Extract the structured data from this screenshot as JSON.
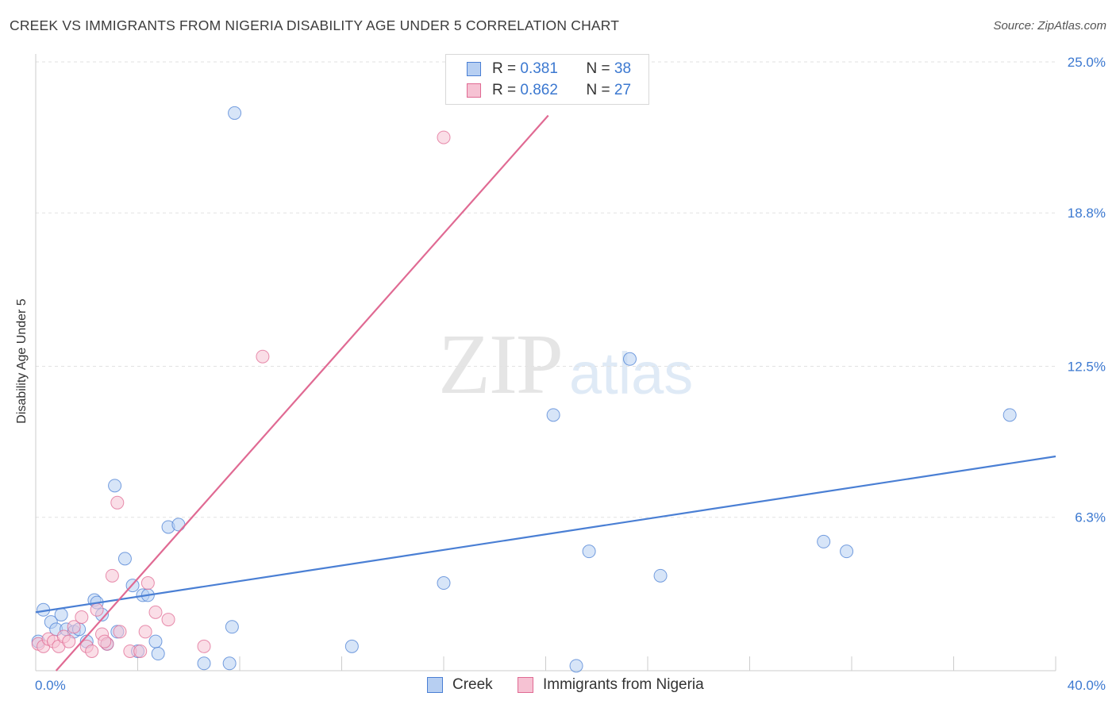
{
  "title": "CREEK VS IMMIGRANTS FROM NIGERIA DISABILITY AGE UNDER 5 CORRELATION CHART",
  "source": "Source: ZipAtlas.com",
  "watermark": {
    "zip": "ZIP",
    "atlas": "atlas"
  },
  "legend": {
    "rows": [
      {
        "r_label": "R =",
        "r_value": "0.381",
        "n_label": "N =",
        "n_value": "38"
      },
      {
        "r_label": "R =",
        "r_value": "0.862",
        "n_label": "N =",
        "n_value": "27"
      }
    ]
  },
  "chart_data": {
    "type": "scatter",
    "title": "CREEK VS IMMIGRANTS FROM NIGERIA DISABILITY AGE UNDER 5 CORRELATION CHART",
    "xlabel": "",
    "ylabel": "Disability Age Under 5",
    "xlim": [
      0,
      40
    ],
    "ylim": [
      0,
      25
    ],
    "x_tick_labels": [
      "0.0%",
      "40.0%"
    ],
    "y_ticks": [
      6.3,
      12.5,
      18.8,
      25.0
    ],
    "y_tick_labels": [
      "6.3%",
      "12.5%",
      "18.8%",
      "25.0%"
    ],
    "series": [
      {
        "name": "Creek",
        "color": "#4a7fd4",
        "fill": "#b7cff2",
        "trend": {
          "x": [
            0,
            40
          ],
          "y": [
            2.4,
            8.8
          ]
        },
        "points": [
          [
            0.1,
            1.2
          ],
          [
            0.3,
            2.5
          ],
          [
            0.6,
            2.0
          ],
          [
            0.8,
            1.7
          ],
          [
            1.0,
            2.3
          ],
          [
            1.2,
            1.7
          ],
          [
            1.5,
            1.6
          ],
          [
            1.7,
            1.7
          ],
          [
            2.0,
            1.2
          ],
          [
            2.3,
            2.9
          ],
          [
            2.4,
            2.8
          ],
          [
            2.6,
            2.3
          ],
          [
            2.8,
            1.1
          ],
          [
            3.1,
            7.6
          ],
          [
            3.2,
            1.6
          ],
          [
            3.5,
            4.6
          ],
          [
            3.8,
            3.5
          ],
          [
            4.0,
            0.8
          ],
          [
            4.2,
            3.1
          ],
          [
            4.4,
            3.1
          ],
          [
            4.7,
            1.2
          ],
          [
            4.8,
            0.7
          ],
          [
            5.2,
            5.9
          ],
          [
            5.6,
            6.0
          ],
          [
            6.6,
            0.3
          ],
          [
            7.6,
            0.3
          ],
          [
            7.7,
            1.8
          ],
          [
            7.8,
            22.9
          ],
          [
            12.4,
            1.0
          ],
          [
            16.0,
            3.6
          ],
          [
            20.3,
            10.5
          ],
          [
            21.2,
            0.2
          ],
          [
            21.7,
            4.9
          ],
          [
            23.3,
            12.8
          ],
          [
            24.5,
            3.9
          ],
          [
            30.9,
            5.3
          ],
          [
            31.8,
            4.9
          ],
          [
            38.2,
            10.5
          ]
        ]
      },
      {
        "name": "Immigrants from Nigeria",
        "color": "#e06a93",
        "fill": "#f6c2d3",
        "trend": {
          "x": [
            0.8,
            20.1
          ],
          "y": [
            0,
            22.8
          ]
        },
        "points": [
          [
            0.1,
            1.1
          ],
          [
            0.3,
            1.0
          ],
          [
            0.5,
            1.3
          ],
          [
            0.7,
            1.2
          ],
          [
            0.9,
            1.0
          ],
          [
            1.1,
            1.4
          ],
          [
            1.3,
            1.2
          ],
          [
            1.5,
            1.8
          ],
          [
            1.8,
            2.2
          ],
          [
            2.0,
            1.0
          ],
          [
            2.2,
            0.8
          ],
          [
            2.4,
            2.5
          ],
          [
            2.6,
            1.5
          ],
          [
            2.8,
            1.1
          ],
          [
            3.0,
            3.9
          ],
          [
            3.2,
            6.9
          ],
          [
            3.3,
            1.6
          ],
          [
            3.7,
            0.8
          ],
          [
            4.1,
            0.8
          ],
          [
            4.3,
            1.6
          ],
          [
            4.4,
            3.6
          ],
          [
            4.7,
            2.4
          ],
          [
            5.2,
            2.1
          ],
          [
            6.6,
            1.0
          ],
          [
            8.9,
            12.9
          ],
          [
            16.0,
            21.9
          ],
          [
            2.7,
            1.2
          ]
        ]
      }
    ]
  }
}
